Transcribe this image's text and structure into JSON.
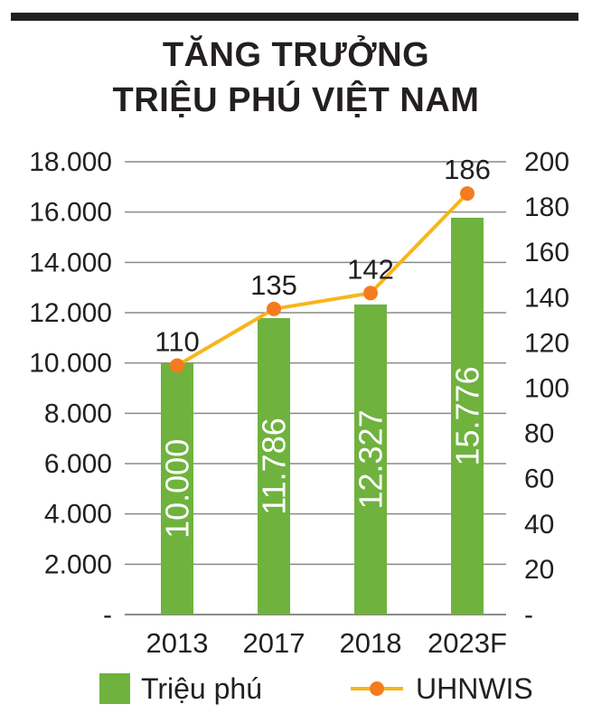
{
  "header": {
    "line1": "TĂNG TRƯỞNG",
    "line2": "TRIỆU PHÚ VIỆT NAM"
  },
  "chart_data": {
    "type": "bar",
    "categories": [
      "2013",
      "2017",
      "2018",
      "2023F"
    ],
    "series": [
      {
        "name": "Triệu phú",
        "type": "bar",
        "axis": "left",
        "values": [
          10000,
          11786,
          12327,
          15776
        ],
        "value_labels": [
          "10.000",
          "11.786",
          "12.327",
          "15.776"
        ],
        "color": "#6fb23e"
      },
      {
        "name": "UHNWIS",
        "type": "line",
        "axis": "right",
        "values": [
          110,
          135,
          142,
          186
        ],
        "value_labels": [
          "110",
          "135",
          "142",
          "186"
        ],
        "color": "#f8b51a",
        "marker_color": "#f47b20"
      }
    ],
    "y_left": {
      "ylim": [
        0,
        18000
      ],
      "ticks": [
        0,
        2000,
        4000,
        6000,
        8000,
        10000,
        12000,
        14000,
        16000,
        18000
      ],
      "tick_labels": [
        "-",
        "2.000",
        "4.000",
        "6.000",
        "8.000",
        "10.000",
        "12.000",
        "14.000",
        "16.000",
        "18.000"
      ]
    },
    "y_right": {
      "ylim": [
        0,
        200
      ],
      "ticks": [
        0,
        20,
        40,
        60,
        80,
        100,
        120,
        140,
        160,
        180,
        200
      ],
      "tick_labels": [
        "-",
        "20",
        "40",
        "60",
        "80",
        "100",
        "120",
        "140",
        "160",
        "180",
        "200"
      ]
    },
    "grid": true,
    "legend_position": "bottom"
  }
}
